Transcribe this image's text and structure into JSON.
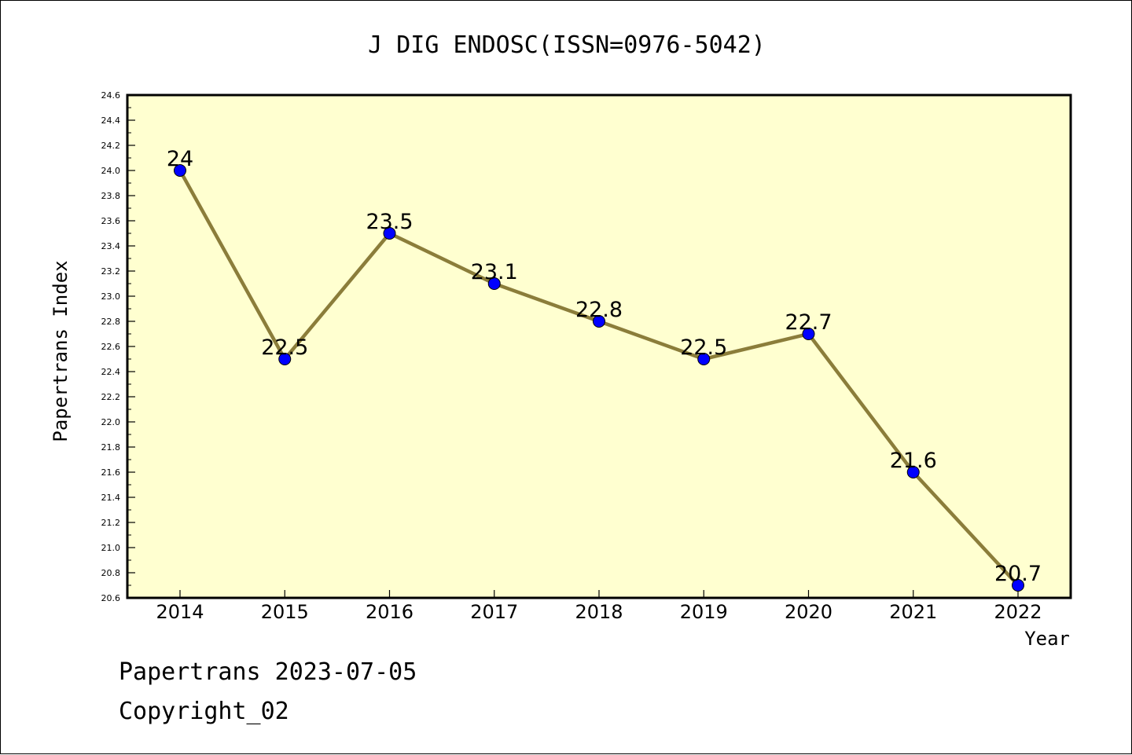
{
  "chart_data": {
    "type": "line",
    "title": "J DIG ENDOSC(ISSN=0976-5042)",
    "xlabel": "Year",
    "ylabel": "Papertrans Index",
    "categories": [
      "2014",
      "2015",
      "2016",
      "2017",
      "2018",
      "2019",
      "2020",
      "2021",
      "2022"
    ],
    "values": [
      24,
      22.5,
      23.5,
      23.1,
      22.8,
      22.5,
      22.7,
      21.6,
      20.7
    ],
    "data_labels": [
      "24",
      "22.5",
      "23.5",
      "23.1",
      "22.8",
      "22.5",
      "22.7",
      "21.6",
      "20.7"
    ],
    "ylim": [
      20.6,
      24.6
    ],
    "ytick_step": 0.2,
    "yticks": [
      "20.6",
      "20.8",
      "21.0",
      "21.2",
      "21.4",
      "21.6",
      "21.8",
      "22.0",
      "22.2",
      "22.4",
      "22.6",
      "22.8",
      "23.0",
      "23.2",
      "23.4",
      "23.6",
      "23.8",
      "24.0",
      "24.2",
      "24.4",
      "24.6"
    ],
    "grid": false,
    "colors": {
      "plot_background": "#ffffd0",
      "line": "#8b7d3a",
      "marker": "#0000ff"
    }
  },
  "footer": {
    "line1": "Papertrans 2023-07-05",
    "line2": "Copyright_02"
  }
}
